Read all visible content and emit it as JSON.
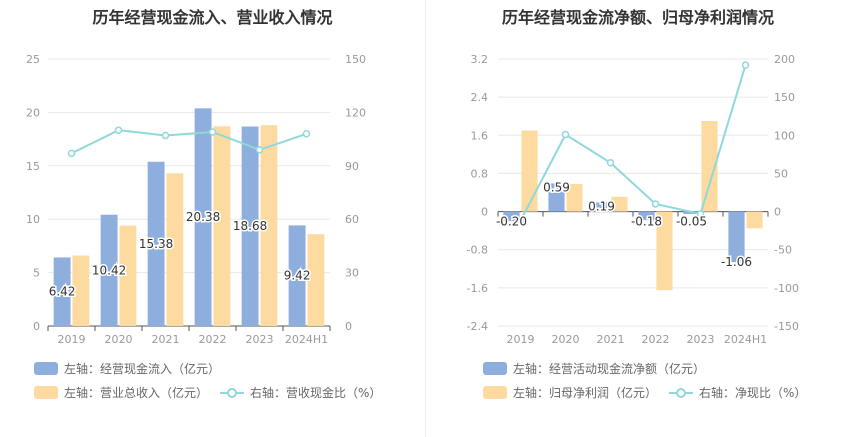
{
  "chart_data": [
    {
      "type": "bar",
      "title": "历年经营现金流入、营业收入情况",
      "categories": [
        "2019",
        "2020",
        "2021",
        "2022",
        "2023",
        "2024H1"
      ],
      "series": [
        {
          "name": "左轴：经营现金流入（亿元）",
          "axis": "left",
          "type": "bar",
          "color": "#8eaedd",
          "values": [
            6.42,
            10.42,
            15.38,
            20.38,
            18.68,
            9.42
          ],
          "labels": [
            "6.42",
            "10.42",
            "15.38",
            "20.38",
            "18.68",
            "9.42"
          ]
        },
        {
          "name": "左轴：营业总收入（亿元）",
          "axis": "left",
          "type": "bar",
          "color": "#fddba0",
          "values": [
            6.6,
            9.4,
            14.3,
            18.7,
            18.8,
            8.6
          ]
        },
        {
          "name": "右轴：营收现金比（%）",
          "axis": "right",
          "type": "line",
          "color": "#8fd8dc",
          "values": [
            97,
            110,
            107,
            109,
            99,
            108
          ]
        }
      ],
      "left_axis": {
        "min": 0,
        "max": 25,
        "ticks": [
          "0",
          "5",
          "10",
          "15",
          "20",
          "25"
        ]
      },
      "right_axis": {
        "min": 0,
        "max": 150,
        "ticks": [
          "0",
          "30",
          "60",
          "90",
          "120",
          "150"
        ]
      },
      "grid": true,
      "legend_position": "bottom-left"
    },
    {
      "type": "bar",
      "title": "历年经营现金流净额、归母净利润情况",
      "categories": [
        "2019",
        "2020",
        "2021",
        "2022",
        "2023",
        "2024H1"
      ],
      "series": [
        {
          "name": "左轴：经营活动现金流净额（亿元）",
          "axis": "left",
          "type": "bar",
          "color": "#8eaedd",
          "values": [
            -0.2,
            0.59,
            0.19,
            -0.18,
            -0.05,
            -1.06
          ],
          "labels": [
            "-0.20",
            "0.59",
            "0.19",
            "-0.18",
            "-0.05",
            "-1.06"
          ]
        },
        {
          "name": "左轴：归母净利润（亿元）",
          "axis": "left",
          "type": "bar",
          "color": "#fddba0",
          "values": [
            1.7,
            0.58,
            0.31,
            -1.65,
            1.9,
            -0.35
          ]
        },
        {
          "name": "右轴：净现比（%）",
          "axis": "right",
          "type": "line",
          "color": "#8fd8dc",
          "values": [
            -12,
            101,
            64,
            10,
            -3,
            192
          ]
        }
      ],
      "left_axis": {
        "min": -2.4,
        "max": 3.2,
        "ticks": [
          "-2.4",
          "-1.6",
          "-0.8",
          "0",
          "0.8",
          "1.6",
          "2.4",
          "3.2"
        ]
      },
      "right_axis": {
        "min": -150,
        "max": 200,
        "ticks": [
          "-150",
          "-100",
          "-50",
          "0",
          "50",
          "100",
          "150",
          "200"
        ]
      },
      "grid": true,
      "legend_position": "bottom-left"
    }
  ]
}
